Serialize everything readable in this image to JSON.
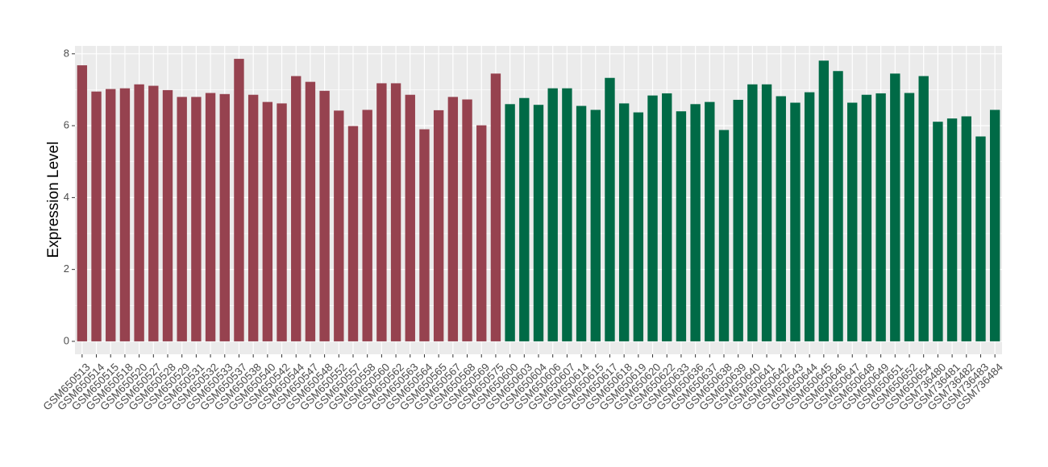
{
  "chart_data": {
    "type": "bar",
    "y_label": "Expression Level",
    "categories": [
      "GSM650513",
      "GSM650514",
      "GSM650515",
      "GSM650518",
      "GSM650520",
      "GSM650527",
      "GSM650528",
      "GSM650529",
      "GSM650531",
      "GSM650532",
      "GSM650533",
      "GSM650537",
      "GSM650538",
      "GSM650540",
      "GSM650542",
      "GSM650544",
      "GSM650547",
      "GSM650548",
      "GSM650552",
      "GSM650557",
      "GSM650558",
      "GSM650560",
      "GSM650562",
      "GSM650563",
      "GSM650564",
      "GSM650565",
      "GSM650567",
      "GSM650568",
      "GSM650569",
      "GSM650575",
      "GSM650600",
      "GSM650603",
      "GSM650604",
      "GSM650606",
      "GSM650607",
      "GSM650614",
      "GSM650615",
      "GSM650617",
      "GSM650618",
      "GSM650619",
      "GSM650620",
      "GSM650622",
      "GSM650633",
      "GSM650636",
      "GSM650637",
      "GSM650638",
      "GSM650639",
      "GSM650640",
      "GSM650641",
      "GSM650642",
      "GSM650643",
      "GSM650644",
      "GSM650645",
      "GSM650646",
      "GSM650647",
      "GSM650648",
      "GSM650649",
      "GSM650651",
      "GSM650652",
      "GSM650654",
      "GSM736480",
      "GSM736481",
      "GSM736482",
      "GSM736483",
      "GSM736484"
    ],
    "series": [
      {
        "color": "#96424f",
        "values": [
          7.68,
          6.95,
          7.02,
          7.04,
          7.15,
          7.11,
          6.99,
          6.8,
          6.8,
          6.91,
          6.88,
          7.86,
          6.86,
          6.66,
          6.62,
          7.38,
          7.22,
          6.97,
          6.42,
          5.99,
          6.44,
          7.18,
          7.18,
          6.86,
          5.9,
          6.43,
          6.8,
          6.73,
          6.01,
          7.45,
          null,
          null,
          null,
          null,
          null,
          null,
          null,
          null,
          null,
          null,
          null,
          null,
          null,
          null,
          null,
          null,
          null,
          null,
          null,
          null,
          null,
          null,
          null,
          null,
          null,
          null,
          null,
          null,
          null,
          null,
          null,
          null,
          null,
          null,
          null
        ]
      },
      {
        "color": "#006a46",
        "values": [
          null,
          null,
          null,
          null,
          null,
          null,
          null,
          null,
          null,
          null,
          null,
          null,
          null,
          null,
          null,
          null,
          null,
          null,
          null,
          null,
          null,
          null,
          null,
          null,
          null,
          null,
          null,
          null,
          null,
          null,
          6.6,
          6.77,
          6.58,
          7.04,
          7.04,
          6.55,
          6.44,
          7.33,
          6.62,
          6.37,
          6.84,
          6.9,
          6.4,
          6.6,
          6.66,
          5.88,
          6.72,
          7.15,
          7.15,
          6.82,
          6.64,
          6.93,
          7.81,
          7.52,
          6.64,
          6.86,
          6.9,
          7.45,
          6.91,
          7.38,
          6.11,
          6.2,
          6.26,
          5.7,
          6.44
        ]
      }
    ],
    "ylim": [
      -0.36,
      8.22
    ],
    "yticks": [
      0,
      2,
      4,
      6,
      8
    ],
    "grid": true
  }
}
